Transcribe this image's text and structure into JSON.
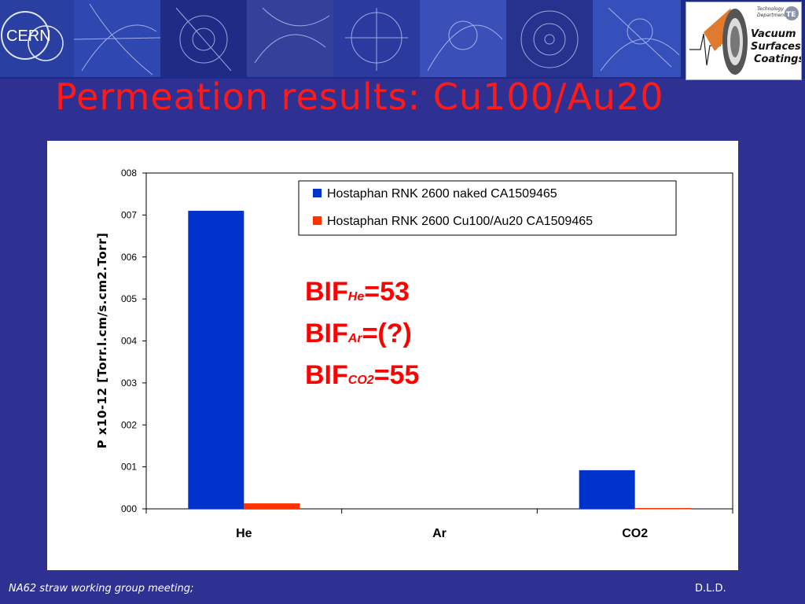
{
  "header": {
    "cern_logo_text": "CERN",
    "vsc_logo": {
      "dept_line1": "Technology",
      "dept_line2": "Department",
      "te_badge": "TE",
      "line1": "Vacuum",
      "line2": "Surfaces..",
      "line3": "Coatings"
    }
  },
  "slide": {
    "title": "Permeation results: Cu100/Au20"
  },
  "bif": {
    "he_main": "BIF",
    "he_sub": "He",
    "he_value": "=53",
    "ar_main": "BIF",
    "ar_sub": "Ar",
    "ar_value": "=(?)",
    "co2_main": "BIF",
    "co2_sub": "CO2",
    "co2_value": "=55"
  },
  "footer": {
    "left": "NA62 straw working group meeting;",
    "right": "D.L.D."
  },
  "colors": {
    "background": "#2e3192",
    "title": "#ff1a1a",
    "series_naked": "#0033cc",
    "series_coated": "#ff3300"
  },
  "chart_data": {
    "type": "bar",
    "categories": [
      "He",
      "Ar",
      "CO2"
    ],
    "ylabel": "P x10-12 [Torr.l.cm/s.cm2.Torr]",
    "xlabel": "",
    "ylim": [
      0,
      8
    ],
    "yticks": [
      0,
      1,
      2,
      3,
      4,
      5,
      6,
      7,
      8
    ],
    "ytick_labels": [
      "000",
      "001",
      "002",
      "003",
      "004",
      "005",
      "006",
      "007",
      "008"
    ],
    "grid": false,
    "legend_position": "top-right",
    "series": [
      {
        "name": "Hostaphan RNK 2600 naked CA1509465",
        "color": "#0033cc",
        "values": [
          7.1,
          0,
          0.92
        ]
      },
      {
        "name": "Hostaphan RNK 2600 Cu100/Au20 CA1509465",
        "color": "#ff3300",
        "values": [
          0.13,
          0,
          0.02
        ]
      }
    ]
  }
}
